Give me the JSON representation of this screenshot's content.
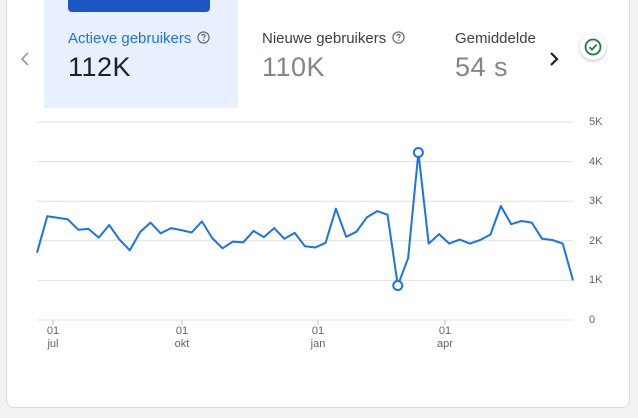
{
  "tabs": [
    {
      "label": "Actieve gebruikers",
      "value": "112K",
      "active": true
    },
    {
      "label": "Nieuwe gebruikers",
      "value": "110K",
      "active": false
    },
    {
      "label": "Gemiddelde",
      "value": "54 s",
      "active": false
    }
  ],
  "icons": {
    "prev": "chevron-left-icon",
    "next": "chevron-right-icon",
    "help": "help-circle-icon",
    "status": "check-circle-icon"
  },
  "colors": {
    "accent": "#1a73e8",
    "active_tab_bg": "#e8f0fe",
    "line": "#1a73e8",
    "status_green": "#188038"
  },
  "chart_data": {
    "type": "line",
    "y_ticks": [
      "5K",
      "4K",
      "3K",
      "2K",
      "1K",
      "0"
    ],
    "x_ticks": [
      {
        "day": "01",
        "month": "jul"
      },
      {
        "day": "01",
        "month": "okt"
      },
      {
        "day": "01",
        "month": "jan"
      },
      {
        "day": "01",
        "month": "apr"
      }
    ],
    "ylim": [
      0,
      5000
    ],
    "grid": true,
    "series": [
      {
        "values": [
          1700,
          2620,
          2580,
          2540,
          2280,
          2300,
          2080,
          2400,
          2030,
          1760,
          2220,
          2460,
          2190,
          2320,
          2270,
          2210,
          2490,
          2070,
          1810,
          1980,
          1960,
          2250,
          2090,
          2320,
          2050,
          2200,
          1860,
          1830,
          1950,
          2810,
          2100,
          2230,
          2590,
          2750,
          2660,
          870,
          1560,
          4230,
          1930,
          2170,
          1930,
          2030,
          1930,
          2020,
          2160,
          2880,
          2420,
          2500,
          2460,
          2050,
          2020,
          1930,
          1000
        ],
        "markers": [
          35,
          37
        ]
      }
    ]
  }
}
